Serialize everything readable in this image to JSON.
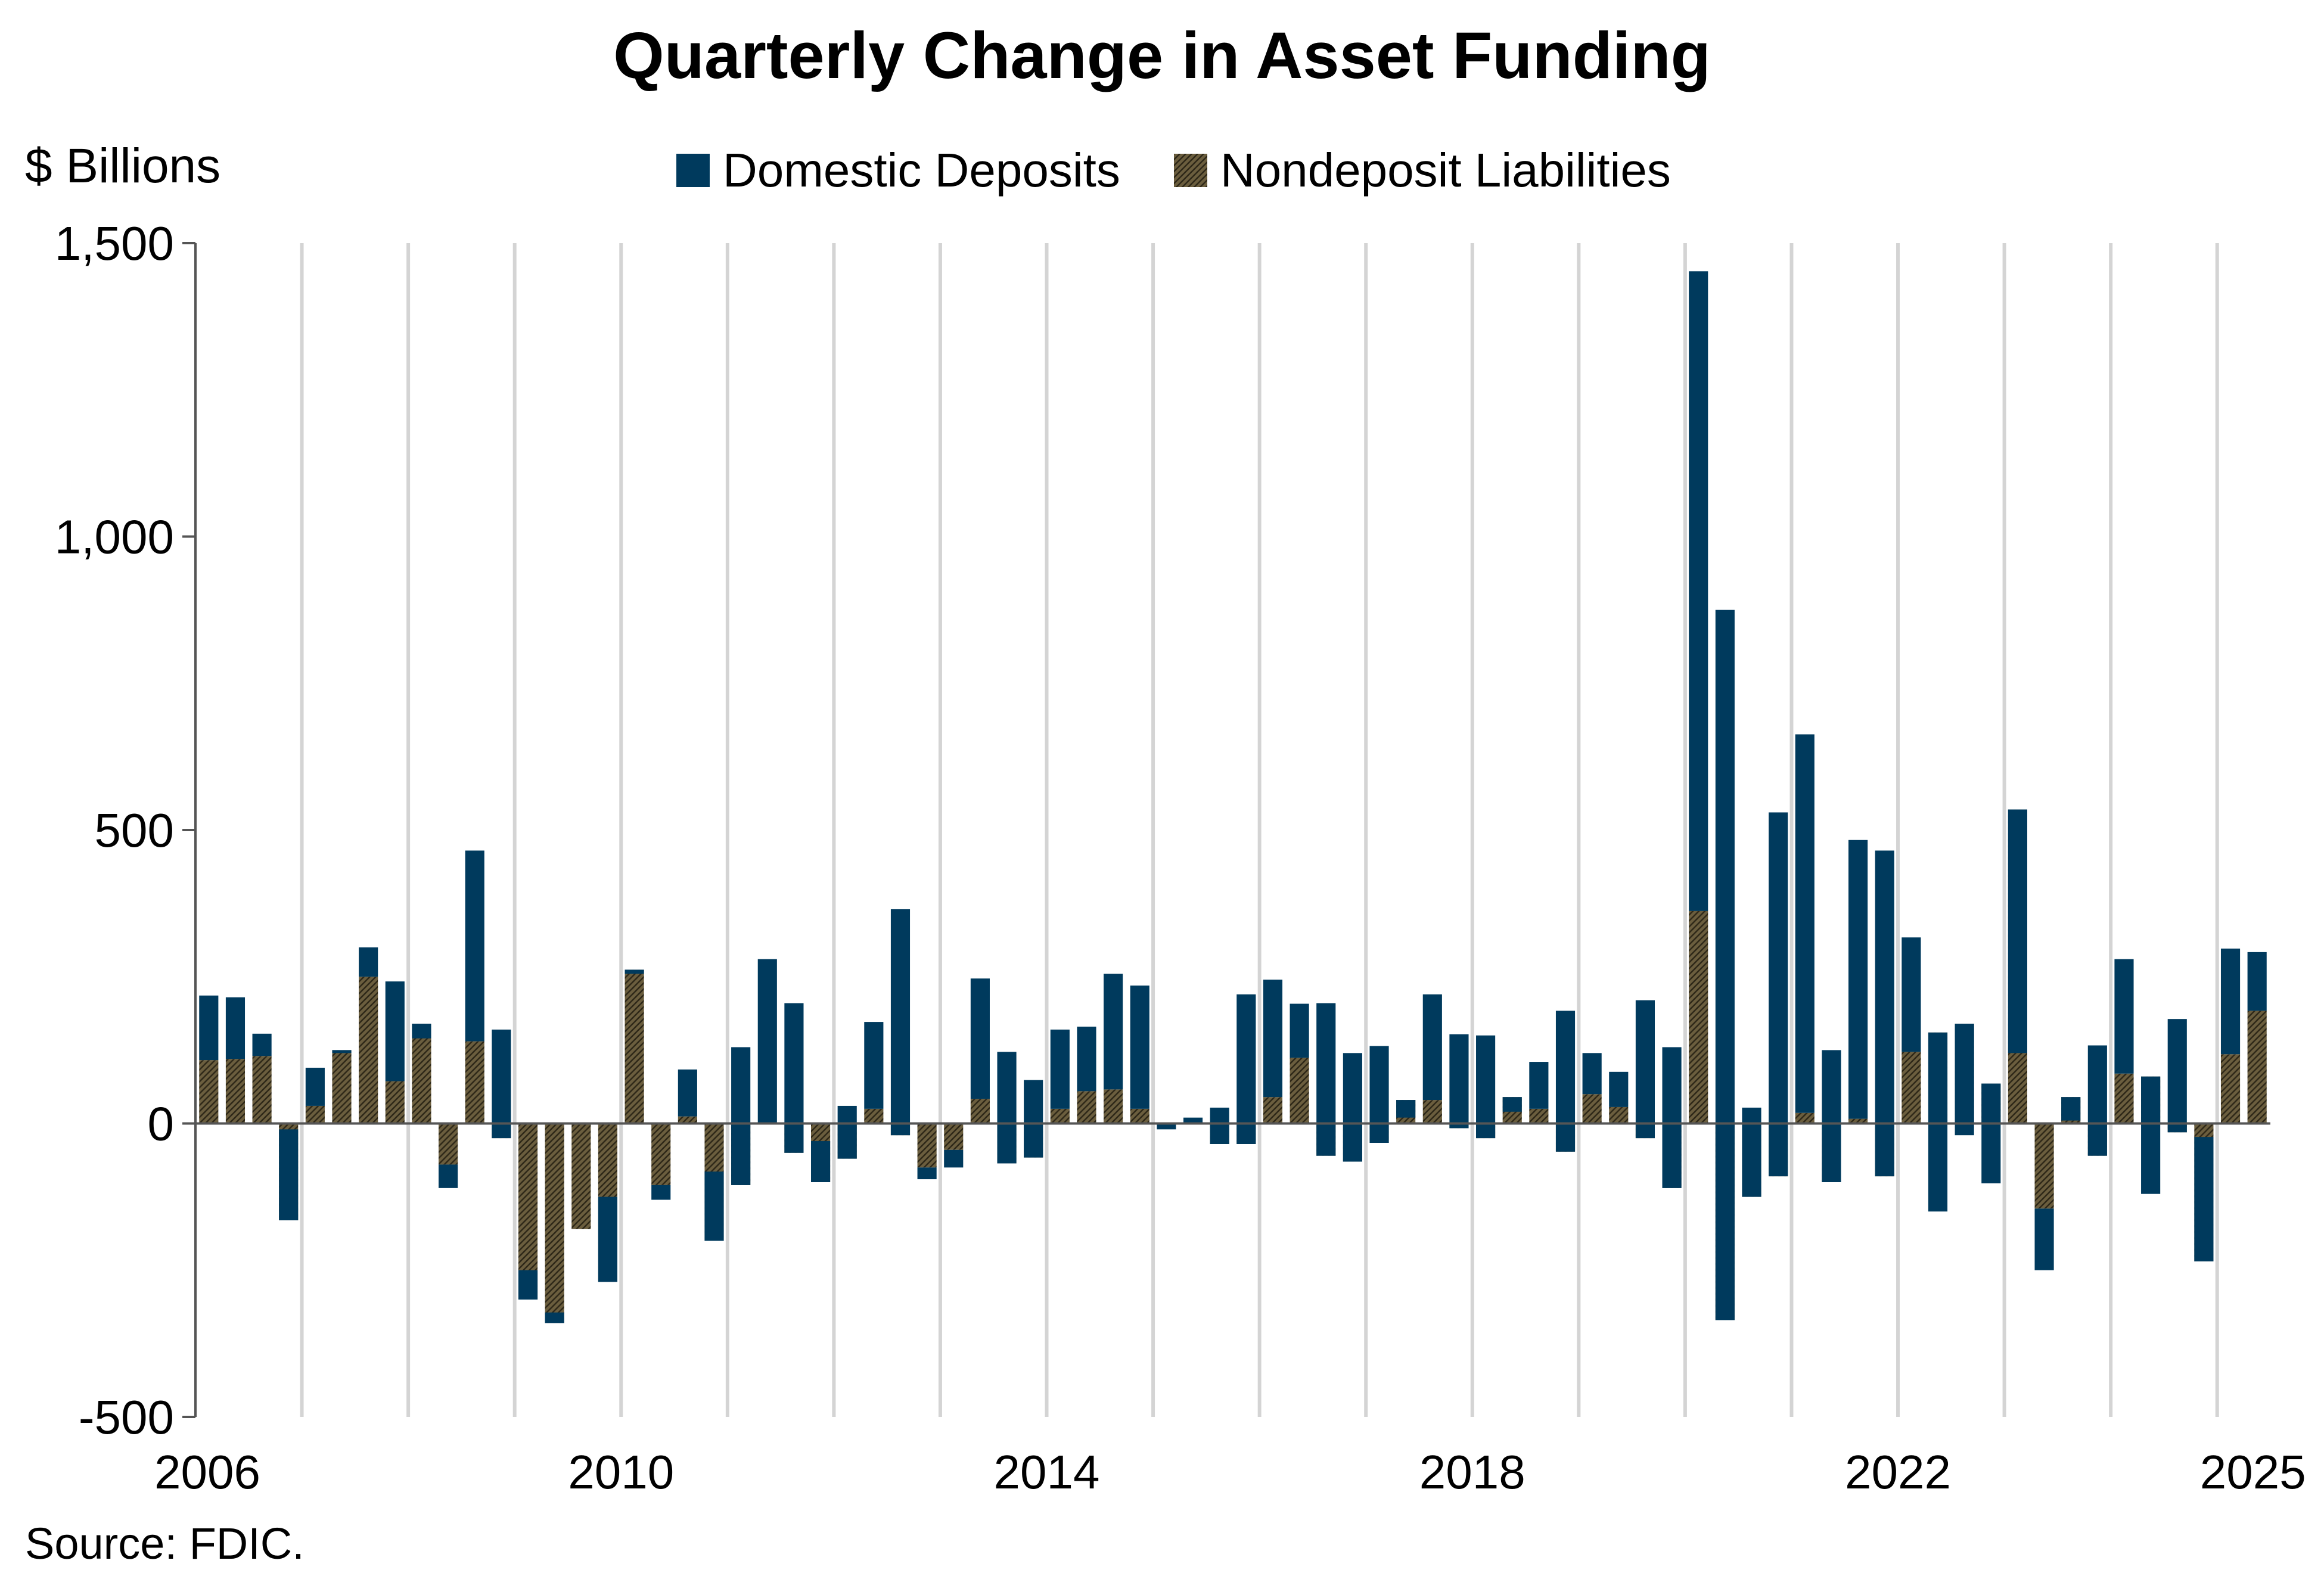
{
  "chart_data": {
    "type": "bar",
    "stacked": true,
    "title": "Quarterly Change in Asset Funding",
    "ylabel": "$ Billions",
    "source": "Source: FDIC.",
    "ylim": [
      -500,
      1500
    ],
    "yticks": [
      1500,
      1000,
      500,
      0,
      -500
    ],
    "ytick_labels": [
      "1,500",
      "1,000",
      "500",
      "0",
      "-500"
    ],
    "x_start_year": 2006,
    "x_end": 2025.5,
    "xticks": [
      {
        "year": 2006,
        "label": "2006"
      },
      {
        "year": 2010,
        "label": "2010"
      },
      {
        "year": 2014,
        "label": "2014"
      },
      {
        "year": 2018,
        "label": "2018"
      },
      {
        "year": 2022,
        "label": "2022"
      },
      {
        "year": 2025,
        "label": "2025"
      }
    ],
    "grid": "vertical",
    "legend_position": "top-center",
    "series": [
      {
        "name": "Domestic Deposits",
        "color": "#003a5d",
        "values": [
          110,
          105,
          38,
          155,
          65,
          -5,
          50,
          170,
          -25,
          -40,
          325,
          185,
          50,
          18,
          0,
          145,
          -7,
          -25,
          80,
          118,
          235,
          280,
          255,
          70,
          90,
          148,
          385,
          -20,
          -30,
          205,
          190,
          132,
          135,
          110,
          197,
          210,
          -10,
          10,
          62,
          255,
          200,
          92,
          260,
          185,
          165,
          -30,
          180,
          160,
          175,
          -25,
          80,
          240,
          70,
          60,
          235,
          240,
          1090,
          1210,
          152,
          620,
          645,
          225,
          475,
          555,
          195,
          -305,
          -190,
          -170,
          -415,
          -105,
          -40,
          188,
          195,
          -200,
          193,
          212,
          180,
          100
        ],
        "comment_values": "incremental heights stacked from the end of the other series"
      },
      {
        "name": "Nondeposit Liabilities",
        "color": "#6b5e3e",
        "values": [
          108,
          110,
          115,
          -165,
          30,
          125,
          250,
          72,
          170,
          -70,
          140,
          -25,
          -300,
          -340,
          -180,
          -270,
          262,
          -105,
          12,
          -200,
          -105,
          0,
          -50,
          -100,
          -60,
          25,
          -20,
          -75,
          -45,
          42,
          -68,
          -58,
          25,
          55,
          58,
          25,
          0,
          0,
          -35,
          -35,
          45,
          112,
          -55,
          -65,
          -33,
          40,
          40,
          -8,
          -25,
          45,
          25,
          -48,
          50,
          28,
          -25,
          -110,
          362,
          -335,
          -125,
          -90,
          18,
          -100,
          8,
          -90,
          122,
          155,
          170,
          68,
          535,
          -145,
          45,
          -55,
          85,
          80,
          -15,
          -235,
          118,
          192
        ],
        "comment_values": "values plotted from zero"
      }
    ]
  }
}
